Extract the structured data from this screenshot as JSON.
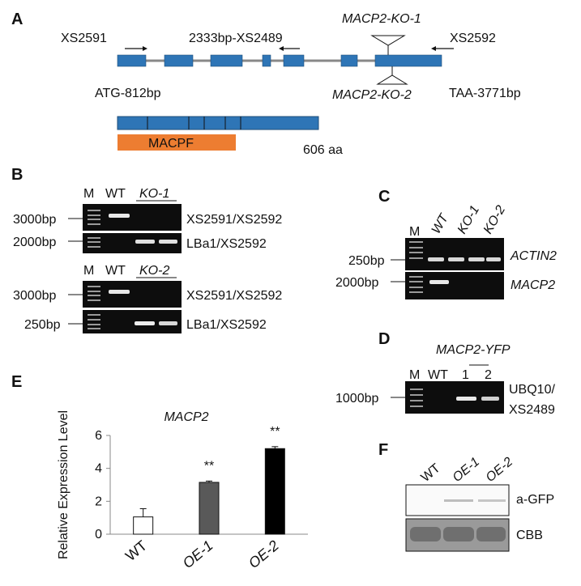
{
  "colors": {
    "exon": "#2e75b6",
    "domain": "#ed7d31",
    "gel_bg": "#0d0d0d",
    "band": "#e8e8e8",
    "bar_wt": "#ffffff",
    "bar_oe1": "#595959",
    "bar_oe2": "#000000"
  },
  "panelA": {
    "letter": "A",
    "primer_left": "XS2591",
    "primer_mid": "2333bp-XS2489",
    "ko1": "MACP2-KO-1",
    "primer_right": "XS2592",
    "atg": "ATG-812bp",
    "ko2": "MACP2-KO-2",
    "taa": "TAA-3771bp",
    "domain": "MACPF",
    "length": "606 aa"
  },
  "panelB": {
    "letter": "B",
    "top": {
      "m": "M",
      "wt": "WT",
      "ko": "KO-1",
      "size1": "3000bp",
      "size2": "2000bp",
      "primer1": "XS2591/XS2592",
      "primer2": "LBa1/XS2592"
    },
    "bottom": {
      "m": "M",
      "wt": "WT",
      "ko": "KO-2",
      "size1": "3000bp",
      "size2": "250bp",
      "primer1": "XS2591/XS2592",
      "primer2": "LBa1/XS2592"
    }
  },
  "panelC": {
    "letter": "C",
    "m": "M",
    "wt": "WT",
    "ko1": "KO-1",
    "ko2": "KO-2",
    "size1": "250bp",
    "size2": "2000bp",
    "gene1": "ACTIN2",
    "gene2": "MACP2"
  },
  "panelD": {
    "letter": "D",
    "title": "MACP2-YFP",
    "m": "M",
    "wt": "WT",
    "l1": "1",
    "l2": "2",
    "size": "1000bp",
    "primer_l1": "UBQ10/",
    "primer_l2": "XS2489"
  },
  "panelE": {
    "letter": "E"
  },
  "panelF": {
    "letter": "F",
    "wt": "WT",
    "oe1": "OE-1",
    "oe2": "OE-2",
    "row1": "a-GFP",
    "row2": "CBB"
  },
  "chart_data": {
    "type": "bar",
    "title": "MACP2",
    "ylabel": "Relative Expression Level",
    "xlabel": "",
    "categories": [
      "WT",
      "OE-1",
      "OE-2"
    ],
    "values": [
      1.05,
      3.15,
      5.2
    ],
    "errors": [
      0.5,
      0.08,
      0.12
    ],
    "significance": [
      "",
      "**",
      "**"
    ],
    "ylim": [
      0,
      6
    ],
    "yticks": [
      "0",
      "2",
      "4",
      "6"
    ],
    "grid": false
  }
}
